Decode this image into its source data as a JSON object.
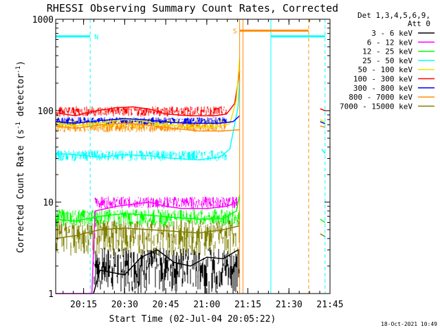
{
  "chart_data": {
    "type": "line",
    "title": "RHESSI Observing Summary Count Rates, Corrected",
    "xlabel": "Start Time (02-Jul-04 20:05:22)",
    "ylabel": "Corrected Count Rate (s⁻¹ detector⁻¹)",
    "ylabel_main": "Corrected Count Rate (s",
    "ylabel_sup1": "-1",
    "ylabel_mid": " detector",
    "ylabel_sup2": "-1",
    "ylabel_end": ")",
    "yscale": "log",
    "ylim": [
      1,
      1000
    ],
    "xlim_minutes": [
      20.08,
      21.75
    ],
    "yticks": [
      {
        "value": 1,
        "label": "1"
      },
      {
        "value": 10,
        "label": "10"
      },
      {
        "value": 100,
        "label": "100"
      },
      {
        "value": 1000,
        "label": "1000"
      }
    ],
    "xticks": [
      {
        "minutes": 20.25,
        "label": "20:15"
      },
      {
        "minutes": 20.5,
        "label": "20:30"
      },
      {
        "minutes": 20.75,
        "label": "20:45"
      },
      {
        "minutes": 21.0,
        "label": "21:00"
      },
      {
        "minutes": 21.25,
        "label": "21:15"
      },
      {
        "minutes": 21.5,
        "label": "21:30"
      },
      {
        "minutes": 21.75,
        "label": "21:45"
      }
    ],
    "legend_header": [
      "Det 1,3,4,5,6,9,",
      "Att 0"
    ],
    "footer": "18-Oct-2021 10:49",
    "markers": [
      {
        "label": "N",
        "color": "#00ffff"
      },
      {
        "label": "S",
        "color": "#ff8c00"
      }
    ],
    "series": [
      {
        "name": "3 - 6 keV",
        "color": "#000000"
      },
      {
        "name": "6 - 12 keV",
        "color": "#ff00ff"
      },
      {
        "name": "12 - 25 keV",
        "color": "#00ff00"
      },
      {
        "name": "25 - 50 keV",
        "color": "#00ffff"
      },
      {
        "name": "50 - 100 keV",
        "color": "#e6e600"
      },
      {
        "name": "100 - 300 keV",
        "color": "#ff0000"
      },
      {
        "name": "300 - 800 keV",
        "color": "#0000ff"
      },
      {
        "name": "800 - 7000 keV",
        "color": "#ff8c00"
      },
      {
        "name": "7000 - 15000 keV",
        "color": "#808000"
      }
    ],
    "segments": [
      {
        "series": "25 - 50 keV",
        "points": [
          [
            20.08,
            34
          ],
          [
            20.2,
            33
          ],
          [
            20.35,
            31
          ],
          [
            20.5,
            33
          ],
          [
            20.65,
            32
          ],
          [
            20.8,
            30
          ],
          [
            20.95,
            29
          ],
          [
            21.08,
            31
          ],
          [
            21.14,
            38
          ],
          [
            21.19,
            110
          ],
          [
            21.2,
            220
          ]
        ]
      },
      {
        "series": "25 - 50 keV",
        "points": [
          [
            21.7,
            38
          ],
          [
            21.72,
            34
          ]
        ]
      },
      {
        "series": "100 - 300 keV",
        "points": [
          [
            20.08,
            95
          ],
          [
            20.2,
            88
          ],
          [
            20.3,
            98
          ],
          [
            20.45,
            108
          ],
          [
            20.55,
            110
          ],
          [
            20.65,
            104
          ],
          [
            20.75,
            92
          ],
          [
            20.9,
            88
          ],
          [
            21.05,
            88
          ],
          [
            21.12,
            92
          ],
          [
            21.17,
            120
          ],
          [
            21.2,
            270
          ]
        ]
      },
      {
        "series": "100 - 300 keV",
        "points": [
          [
            21.69,
            105
          ],
          [
            21.72,
            100
          ]
        ]
      },
      {
        "series": "50 - 100 keV",
        "points": [
          [
            20.08,
            74
          ],
          [
            20.2,
            68
          ],
          [
            20.35,
            74
          ],
          [
            20.5,
            80
          ],
          [
            20.6,
            78
          ],
          [
            20.75,
            70
          ],
          [
            20.9,
            66
          ],
          [
            21.05,
            66
          ],
          [
            21.14,
            72
          ],
          [
            21.18,
            130
          ],
          [
            21.2,
            380
          ]
        ]
      },
      {
        "series": "50 - 100 keV",
        "points": [
          [
            21.69,
            80
          ],
          [
            21.72,
            74
          ]
        ]
      },
      {
        "series": "300 - 800 keV",
        "points": [
          [
            20.08,
            76
          ],
          [
            20.2,
            73
          ],
          [
            20.35,
            78
          ],
          [
            20.5,
            82
          ],
          [
            20.65,
            79
          ],
          [
            20.8,
            74
          ],
          [
            20.95,
            73
          ],
          [
            21.08,
            73
          ],
          [
            21.16,
            76
          ],
          [
            21.2,
            88
          ]
        ]
      },
      {
        "series": "300 - 800 keV",
        "points": [
          [
            21.69,
            76
          ],
          [
            21.72,
            72
          ]
        ]
      },
      {
        "series": "800 - 7000 keV",
        "points": [
          [
            20.08,
            68
          ],
          [
            20.2,
            64
          ],
          [
            20.35,
            70
          ],
          [
            20.5,
            73
          ],
          [
            20.65,
            69
          ],
          [
            20.8,
            64
          ],
          [
            20.95,
            60
          ],
          [
            21.1,
            60
          ],
          [
            21.2,
            62
          ]
        ]
      },
      {
        "series": "800 - 7000 keV",
        "points": [
          [
            21.69,
            68
          ],
          [
            21.72,
            66
          ]
        ]
      },
      {
        "series": "6 - 12 keV",
        "points": [
          [
            20.08,
            1
          ],
          [
            20.3,
            1
          ],
          [
            20.32,
            8
          ],
          [
            20.45,
            9
          ],
          [
            20.55,
            9.5
          ],
          [
            20.65,
            10
          ],
          [
            20.75,
            9
          ],
          [
            20.85,
            8.5
          ],
          [
            21.0,
            8.5
          ],
          [
            21.12,
            9
          ],
          [
            21.19,
            10
          ]
        ]
      },
      {
        "series": "12 - 25 keV",
        "points": [
          [
            20.08,
            6.5
          ],
          [
            20.2,
            6.2
          ],
          [
            20.35,
            7
          ],
          [
            20.5,
            7.5
          ],
          [
            20.65,
            7.2
          ],
          [
            20.8,
            6.8
          ],
          [
            20.95,
            6.5
          ],
          [
            21.1,
            6.6
          ],
          [
            21.18,
            8
          ],
          [
            21.2,
            12
          ]
        ]
      },
      {
        "series": "12 - 25 keV",
        "points": [
          [
            21.69,
            6.5
          ],
          [
            21.72,
            6
          ]
        ]
      },
      {
        "series": "7000 - 15000 keV",
        "points": [
          [
            20.08,
            4
          ],
          [
            20.2,
            4.3
          ],
          [
            20.35,
            5
          ],
          [
            20.5,
            5.2
          ],
          [
            20.65,
            5
          ],
          [
            20.8,
            4.8
          ],
          [
            20.95,
            4.6
          ],
          [
            21.1,
            5
          ],
          [
            21.2,
            5.5
          ]
        ]
      },
      {
        "series": "7000 - 15000 keV",
        "points": [
          [
            21.69,
            4.5
          ],
          [
            21.72,
            4.2
          ]
        ]
      },
      {
        "series": "3 - 6 keV",
        "points": [
          [
            20.31,
            1
          ],
          [
            20.35,
            1.8
          ],
          [
            20.5,
            1.6
          ],
          [
            20.6,
            2.5
          ],
          [
            20.7,
            3
          ],
          [
            20.8,
            2.2
          ],
          [
            20.9,
            2
          ],
          [
            21.0,
            2.5
          ],
          [
            21.1,
            2.4
          ],
          [
            21.19,
            3
          ]
        ]
      }
    ],
    "noise": [
      {
        "series": "3 - 6 keV",
        "from": 20.31,
        "to": 21.2,
        "lo": 1,
        "hi": 3.2
      },
      {
        "series": "6 - 12 keV",
        "from": 20.32,
        "to": 21.19,
        "lo": 8.5,
        "hi": 11.5
      },
      {
        "series": "12 - 25 keV",
        "from": 20.08,
        "to": 21.2,
        "lo": 5.4,
        "hi": 8.4
      },
      {
        "series": "7000 - 15000 keV",
        "from": 20.08,
        "to": 21.2,
        "lo": 2.6,
        "hi": 6.4
      },
      {
        "series": "25 - 50 keV",
        "from": 20.08,
        "to": 21.12,
        "lo": 28,
        "hi": 37
      },
      {
        "series": "100 - 300 keV",
        "from": 20.08,
        "to": 21.12,
        "lo": 86,
        "hi": 112
      },
      {
        "series": "50 - 100 keV",
        "from": 20.08,
        "to": 21.12,
        "lo": 63,
        "hi": 82
      },
      {
        "series": "300 - 800 keV",
        "from": 20.08,
        "to": 21.12,
        "lo": 70,
        "hi": 85
      },
      {
        "series": "800 - 7000 keV",
        "from": 20.08,
        "to": 21.12,
        "lo": 58,
        "hi": 75
      }
    ],
    "region_bars": [
      {
        "label": "",
        "color": "#00ffff",
        "from": 20.08,
        "to": 20.29,
        "y": 650
      },
      {
        "label": "N",
        "color": "#00ffff",
        "from": 20.29,
        "to": 20.29,
        "y": 650
      },
      {
        "label": "S",
        "color": "#ff8c00",
        "from": 21.2,
        "to": 21.62,
        "y": 750
      },
      {
        "label": "",
        "color": "#00ffff",
        "from": 21.39,
        "to": 21.72,
        "y": 650
      }
    ],
    "vlines": [
      {
        "minutes": 20.29,
        "color": "#00ffff",
        "dash": true
      },
      {
        "minutes": 21.2,
        "color": "#ff8c00",
        "dash": false
      },
      {
        "minutes": 21.22,
        "color": "#ff8c00",
        "dash": false
      },
      {
        "minutes": 21.39,
        "color": "#00ffff",
        "dash": false
      },
      {
        "minutes": 21.62,
        "color": "#ff8c00",
        "dash": true
      },
      {
        "minutes": 21.72,
        "color": "#00ffff",
        "dash": true
      },
      {
        "minutes": 20.08,
        "color": "#00ffff",
        "dash": false
      }
    ]
  }
}
